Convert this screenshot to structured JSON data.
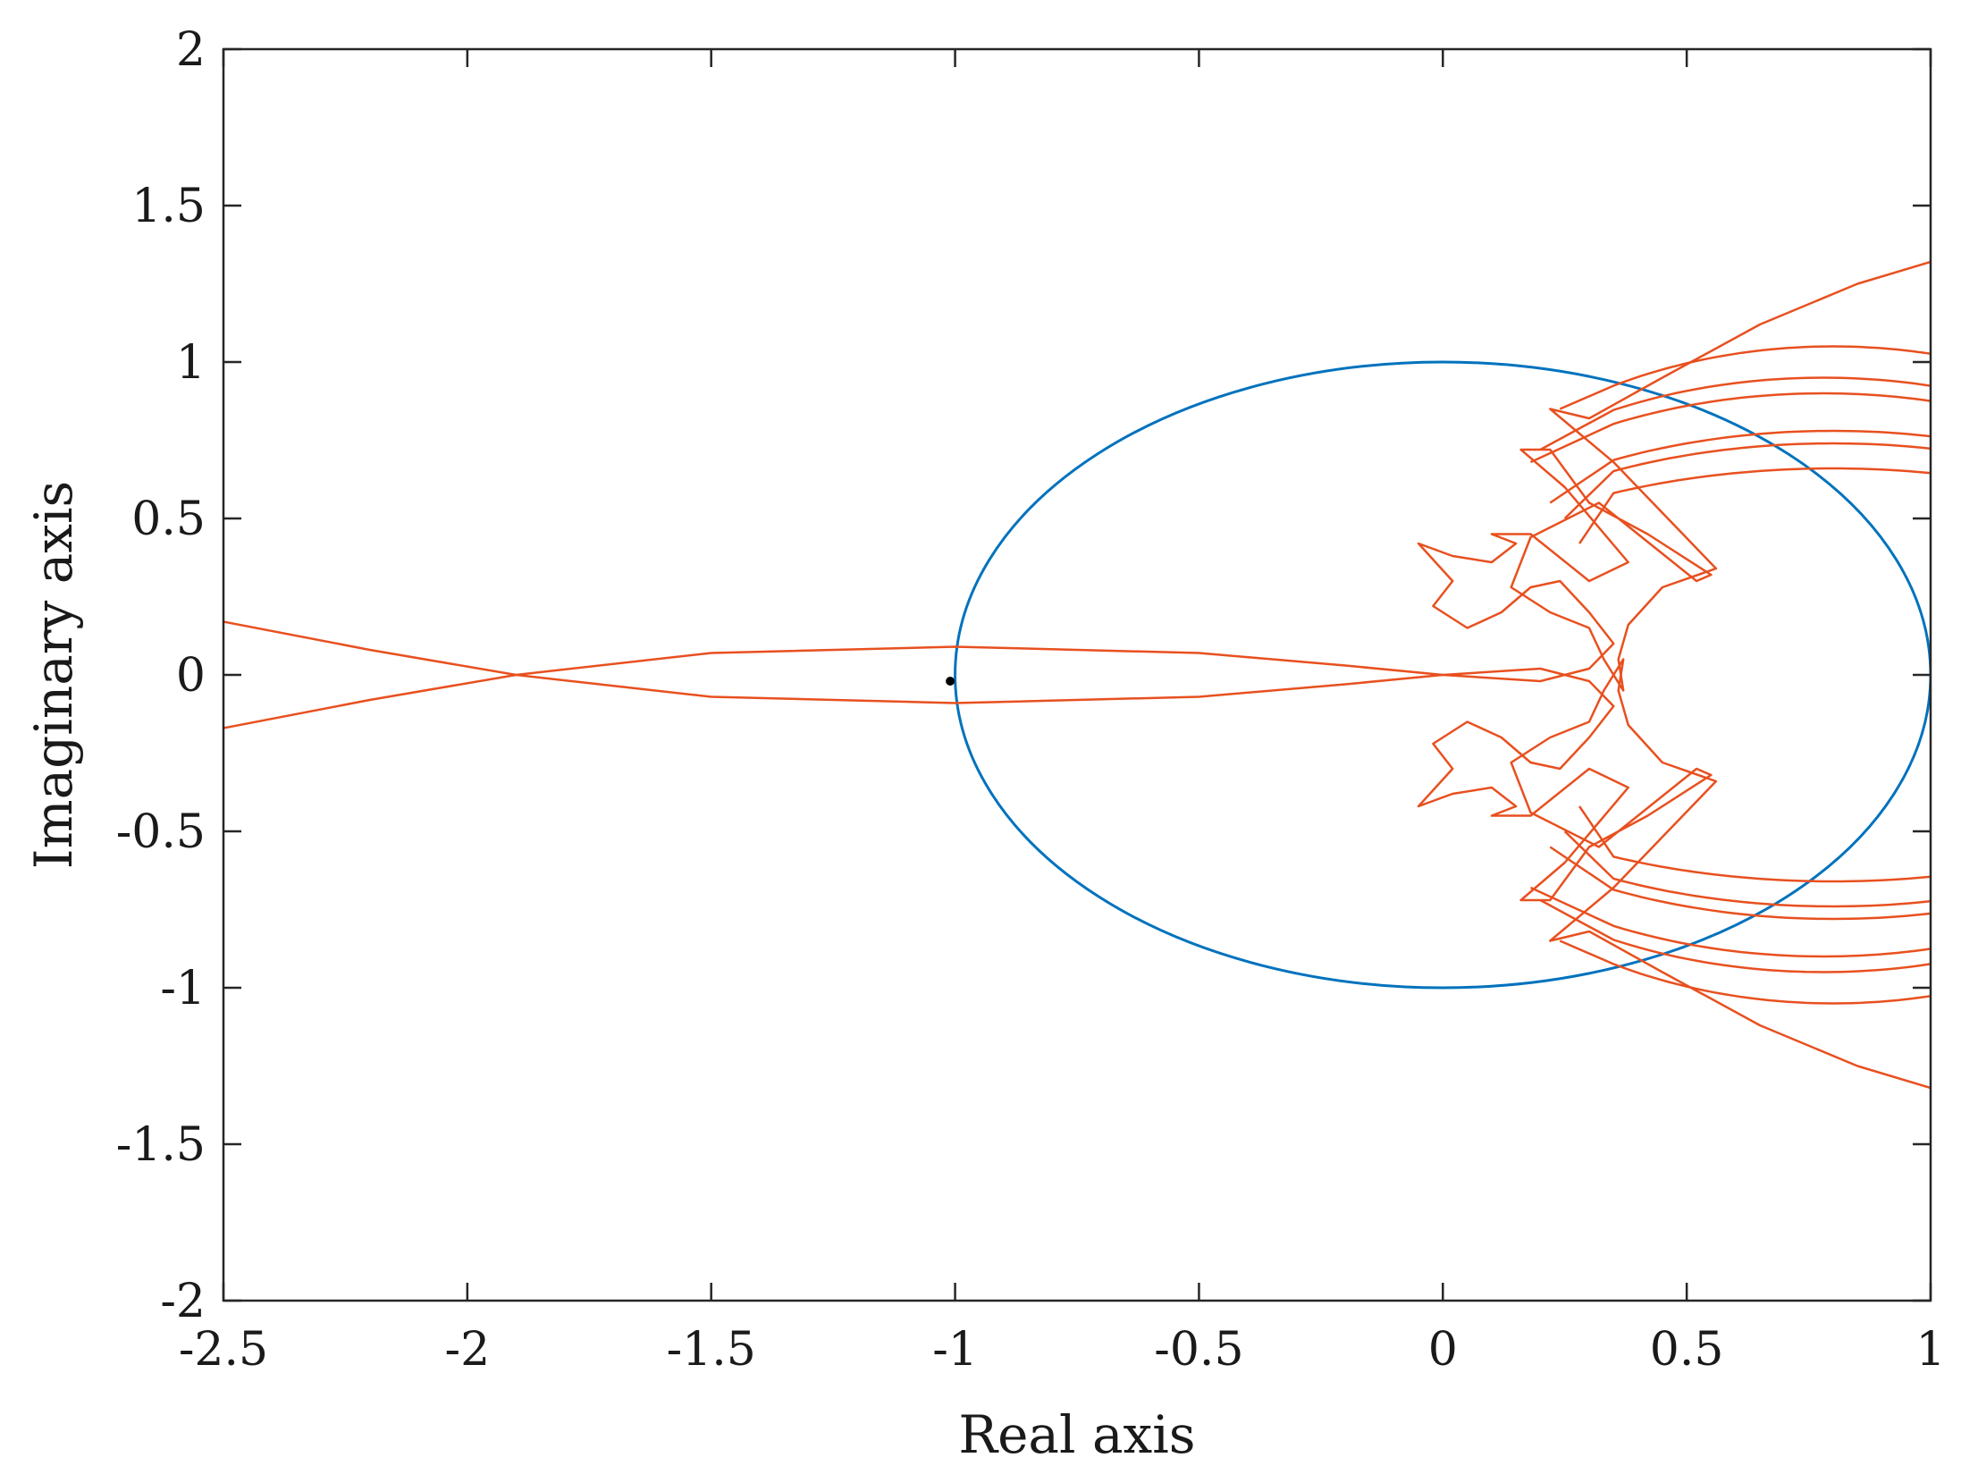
{
  "chart_data": {
    "type": "line",
    "title": "",
    "xlabel": "Real axis",
    "ylabel": "Imaginary axis",
    "xlim": [
      -2.5,
      1
    ],
    "ylim": [
      -2,
      2
    ],
    "grid": false,
    "xticks": [
      -2.5,
      -2,
      -1.5,
      -1,
      -0.5,
      0,
      0.5,
      1
    ],
    "yticks": [
      -2,
      -1.5,
      -1,
      -0.5,
      0,
      0.5,
      1,
      1.5,
      2
    ],
    "xtick_labels": [
      "-2.5",
      "-2",
      "-1.5",
      "-1",
      "-0.5",
      "0",
      "0.5",
      "1"
    ],
    "ytick_labels": [
      "-2",
      "-1.5",
      "-1",
      "-0.5",
      "0",
      "0.5",
      "1",
      "1.5",
      "2"
    ],
    "colors": {
      "unit_circle": "#0072BD",
      "nyquist": "#E8501F",
      "critical_point": "#000000"
    },
    "unit_circle": {
      "center": [
        0,
        0
      ],
      "radius": 1
    },
    "critical_point": {
      "x": -1.01,
      "y": -0.02
    },
    "nyquist_upper": [
      [
        1.0,
        1.32
      ],
      [
        0.85,
        1.25
      ],
      [
        0.65,
        1.12
      ],
      [
        0.45,
        0.95
      ],
      [
        0.3,
        0.82
      ],
      [
        0.22,
        0.85
      ],
      [
        0.35,
        0.68
      ],
      [
        0.56,
        0.34
      ],
      [
        0.45,
        0.28
      ],
      [
        0.38,
        0.16
      ],
      [
        0.36,
        0.05
      ],
      [
        0.37,
        -0.05
      ],
      [
        0.33,
        0.05
      ],
      [
        0.3,
        0.15
      ],
      [
        0.22,
        0.2
      ],
      [
        0.14,
        0.28
      ],
      [
        0.18,
        0.44
      ],
      [
        0.32,
        0.55
      ],
      [
        0.4,
        0.45
      ],
      [
        0.52,
        0.3
      ],
      [
        0.55,
        0.32
      ],
      [
        0.42,
        0.45
      ],
      [
        0.3,
        0.55
      ],
      [
        0.22,
        0.72
      ],
      [
        0.16,
        0.72
      ],
      [
        0.25,
        0.6
      ],
      [
        0.38,
        0.36
      ],
      [
        0.3,
        0.3
      ],
      [
        0.18,
        0.45
      ],
      [
        0.1,
        0.45
      ],
      [
        0.15,
        0.42
      ],
      [
        0.1,
        0.36
      ],
      [
        0.02,
        0.38
      ],
      [
        -0.05,
        0.42
      ],
      [
        0.02,
        0.3
      ],
      [
        -0.02,
        0.22
      ],
      [
        0.05,
        0.15
      ],
      [
        0.12,
        0.2
      ],
      [
        0.18,
        0.28
      ],
      [
        0.24,
        0.3
      ],
      [
        0.3,
        0.2
      ],
      [
        0.35,
        0.1
      ],
      [
        0.3,
        0.02
      ],
      [
        0.2,
        -0.02
      ],
      [
        0.0,
        0.0
      ],
      [
        -0.2,
        0.03
      ],
      [
        -0.5,
        0.07
      ],
      [
        -1.0,
        0.09
      ],
      [
        -1.5,
        0.07
      ],
      [
        -1.9,
        0.0
      ],
      [
        -2.2,
        0.08
      ],
      [
        -2.5,
        0.17
      ]
    ],
    "nyquist_arcs": [
      {
        "cx": 0.8,
        "r": 1.05,
        "x0": 0.24,
        "y0": 0.85
      },
      {
        "cx": 0.78,
        "r": 0.95,
        "x0": 0.2,
        "y0": 0.72
      },
      {
        "cx": 0.78,
        "r": 0.9,
        "x0": 0.18,
        "y0": 0.68
      },
      {
        "cx": 0.8,
        "r": 0.78,
        "x0": 0.22,
        "y0": 0.55
      },
      {
        "cx": 0.8,
        "r": 0.74,
        "x0": 0.25,
        "y0": 0.5
      },
      {
        "cx": 0.8,
        "r": 0.66,
        "x0": 0.28,
        "y0": 0.42
      }
    ]
  }
}
